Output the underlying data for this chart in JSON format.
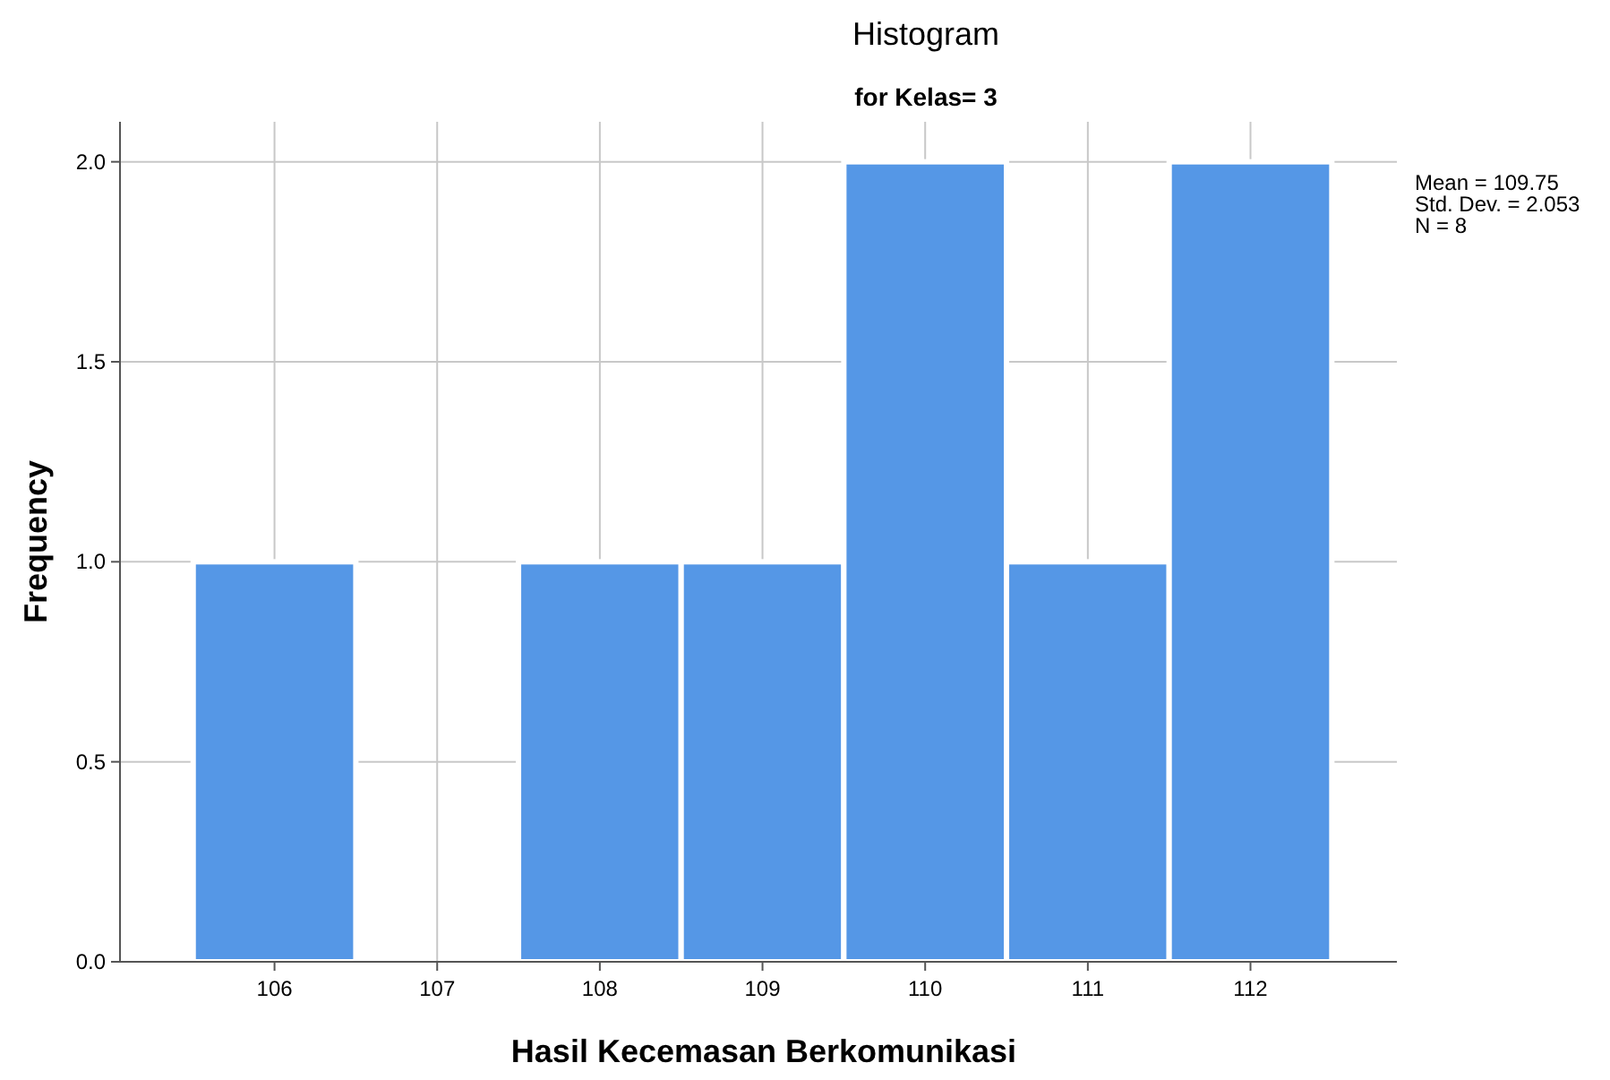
{
  "chart_data": {
    "type": "histogram",
    "title": "Histogram",
    "subtitle": "for Kelas= 3",
    "xlabel": "Hasil Kecemasan Berkomunikasi",
    "ylabel": "Frequency",
    "bins": [
      105.5,
      106.5,
      107.5,
      108.5,
      109.5,
      110.5,
      111.5,
      112.5
    ],
    "values": [
      1,
      0,
      1,
      1,
      2,
      1,
      2
    ],
    "color": "#5597e6",
    "xlim": [
      105.05,
      112.9
    ],
    "xticks": [
      106,
      107,
      108,
      109,
      110,
      111,
      112
    ],
    "ylim": [
      0,
      2.1
    ],
    "yticks": [
      {
        "value": 0,
        "label": "0.0"
      },
      {
        "value": 0.5,
        "label": "0.5"
      },
      {
        "value": 1,
        "label": "1.0"
      },
      {
        "value": 1.5,
        "label": "1.5"
      },
      {
        "value": 2,
        "label": "2.0"
      }
    ],
    "grid": true,
    "annotations": [
      "Mean = 109.75",
      "Std. Dev. = 2.053",
      "N = 8"
    ]
  }
}
